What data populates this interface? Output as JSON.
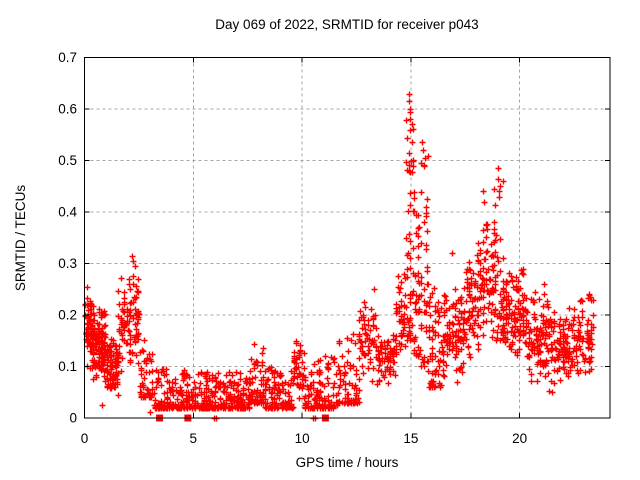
{
  "window": {
    "background": "#ffffff"
  },
  "colors": {
    "marker": "#ff0000",
    "grid": "#a6a6a6",
    "axis": "#000000",
    "text": "#000000",
    "background": "#ffffff"
  },
  "chart_data": {
    "type": "scatter",
    "marker": "plus",
    "marker_color": "#ff0000",
    "title": "Day 069 of 2022, SRMTID for receiver p043",
    "xlabel": "GPS time / hours",
    "ylabel": "SRMTID / TECUs",
    "xlim": [
      0,
      24.15
    ],
    "ylim": [
      0,
      0.7
    ],
    "grid": true,
    "legend": "none",
    "x_ticks": {
      "values": [
        0,
        5,
        10,
        15,
        20
      ],
      "labels": [
        "0",
        "5",
        "10",
        "15",
        "20"
      ]
    },
    "y_ticks": {
      "values": [
        0,
        0.1,
        0.2,
        0.3,
        0.4,
        0.5,
        0.6,
        0.7
      ],
      "labels": [
        "0",
        "0.1",
        "0.2",
        "0.3",
        "0.4",
        "0.5",
        "0.6",
        "0.7"
      ]
    },
    "seed": 1234567,
    "bands_format": [
      "t_start_hours",
      "t_end_hours",
      "n_points",
      "y_min_TECUs",
      "y_max_TECUs",
      "distribution"
    ],
    "bands": [
      [
        0.0,
        0.35,
        70,
        0.09,
        0.26,
        "center"
      ],
      [
        0.35,
        0.95,
        130,
        0.07,
        0.22,
        "center"
      ],
      [
        0.95,
        1.55,
        90,
        0.04,
        0.16,
        "center"
      ],
      [
        1.55,
        2.1,
        55,
        0.07,
        0.28,
        "center"
      ],
      [
        2.1,
        2.55,
        40,
        0.1,
        0.31,
        "center"
      ],
      [
        2.55,
        3.2,
        55,
        0.04,
        0.16,
        "bottom"
      ],
      [
        3.2,
        4.6,
        130,
        0.02,
        0.1,
        "bottom"
      ],
      [
        4.6,
        6.2,
        160,
        0.02,
        0.09,
        "bottom"
      ],
      [
        6.2,
        7.6,
        140,
        0.02,
        0.09,
        "bottom"
      ],
      [
        7.6,
        8.3,
        70,
        0.03,
        0.15,
        "bottom"
      ],
      [
        8.3,
        9.6,
        110,
        0.02,
        0.1,
        "bottom"
      ],
      [
        9.6,
        10.1,
        45,
        0.03,
        0.16,
        "center"
      ],
      [
        10.1,
        11.6,
        120,
        0.02,
        0.12,
        "bottom"
      ],
      [
        11.6,
        12.6,
        80,
        0.03,
        0.17,
        "bottom"
      ],
      [
        12.6,
        13.4,
        60,
        0.05,
        0.24,
        "center"
      ],
      [
        13.4,
        14.3,
        70,
        0.05,
        0.19,
        "center"
      ],
      [
        14.3,
        14.75,
        45,
        0.1,
        0.3,
        "center"
      ],
      [
        14.75,
        15.15,
        60,
        0.15,
        0.6,
        "spread"
      ],
      [
        15.15,
        15.45,
        35,
        0.12,
        0.42,
        "spread"
      ],
      [
        15.45,
        15.8,
        40,
        0.1,
        0.52,
        "spread"
      ],
      [
        15.8,
        16.4,
        60,
        0.06,
        0.28,
        "bottom"
      ],
      [
        16.4,
        17.4,
        95,
        0.05,
        0.26,
        "center"
      ],
      [
        17.4,
        18.1,
        70,
        0.1,
        0.34,
        "center"
      ],
      [
        18.1,
        18.8,
        75,
        0.14,
        0.4,
        "center"
      ],
      [
        18.8,
        19.25,
        50,
        0.15,
        0.47,
        "spread"
      ],
      [
        19.25,
        20.3,
        110,
        0.1,
        0.3,
        "center"
      ],
      [
        20.3,
        21.3,
        95,
        0.06,
        0.26,
        "center"
      ],
      [
        21.3,
        22.3,
        95,
        0.04,
        0.22,
        "center"
      ],
      [
        22.3,
        23.35,
        85,
        0.07,
        0.24,
        "center"
      ]
    ],
    "extra_points": [
      [
        0.8,
        0.026
      ],
      [
        3.0,
        0.012
      ],
      [
        2.2,
        0.315
      ],
      [
        2.25,
        0.305
      ],
      [
        2.3,
        0.295
      ],
      [
        13.3,
        0.25
      ],
      [
        14.9,
        0.63
      ],
      [
        14.92,
        0.615
      ],
      [
        14.95,
        0.595
      ],
      [
        14.98,
        0.56
      ],
      [
        15.0,
        0.5
      ],
      [
        15.5,
        0.535
      ],
      [
        15.55,
        0.52
      ],
      [
        15.6,
        0.49
      ],
      [
        16.9,
        0.32
      ],
      [
        18.3,
        0.44
      ],
      [
        18.35,
        0.42
      ],
      [
        19.0,
        0.485
      ],
      [
        19.02,
        0.465
      ],
      [
        19.05,
        0.44
      ],
      [
        21.1,
        0.26
      ],
      [
        21.12,
        0.24
      ],
      [
        23.2,
        0.24
      ],
      [
        23.25,
        0.235
      ]
    ],
    "zero_squares": [
      3.45,
      4.75,
      11.07
    ],
    "zero_plus": [
      5.95,
      6.05,
      10.5,
      10.57
    ]
  }
}
